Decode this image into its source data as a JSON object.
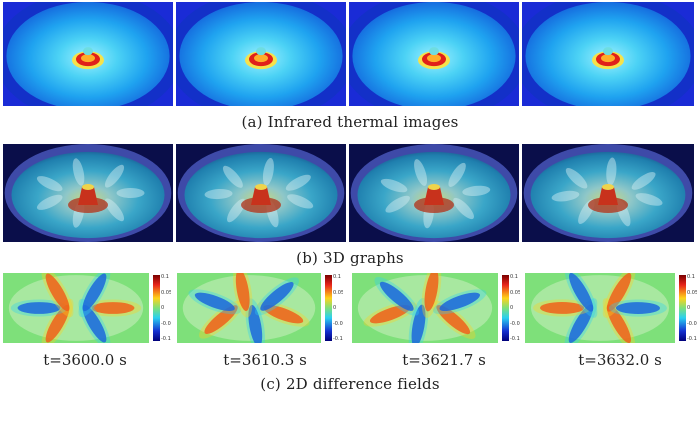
{
  "figure": {
    "row_a": {
      "caption": "(a)  Infrared thermal images",
      "panel_count": 4
    },
    "row_b": {
      "caption": "(b)   3D graphs",
      "panel_count": 4
    },
    "row_c": {
      "caption": "(c)   2D difference fields",
      "time_labels": [
        "t=3600.0 s",
        "t=3610.3 s",
        "t=3621.7 s",
        "t=3632.0 s"
      ],
      "colorbar_ticks": [
        "0.1",
        "0.05",
        "0",
        "-0.05",
        "-0.1"
      ]
    }
  },
  "colors": {
    "thermal_bg": "#1a2bd6",
    "thermal_mid": "#1fa3f0",
    "thermal_hot": "#e0201a",
    "surface_bg": "#0a0e4a",
    "diff_bg": "#7ee07a",
    "diff_pos": "#e8241a",
    "diff_neg": "#1430d0"
  }
}
